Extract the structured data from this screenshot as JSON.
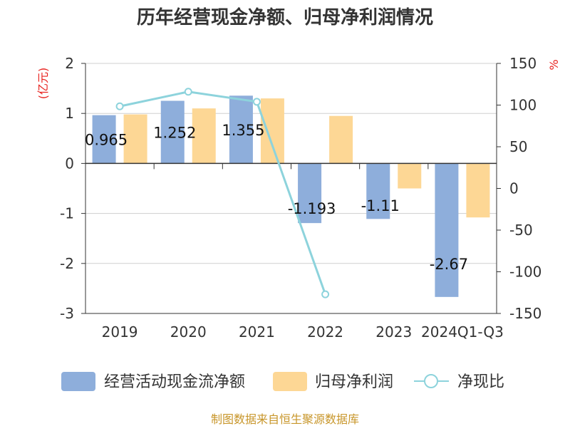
{
  "chart_data": {
    "type": "bar",
    "title": "历年经营现金净额、归母净利润情况",
    "left_axis_unit": "(亿元)",
    "right_axis_unit": "%",
    "categories": [
      "2019",
      "2020",
      "2021",
      "2022",
      "2023",
      "2024Q1-Q3"
    ],
    "left_ylim": [
      -3,
      2
    ],
    "left_ticks": [
      2,
      1,
      0,
      -1,
      -2,
      -3
    ],
    "right_ylim": [
      -150,
      150
    ],
    "right_ticks": [
      150,
      100,
      50,
      0,
      -50,
      -100,
      -150
    ],
    "series": [
      {
        "name": "经营活动现金流净额",
        "kind": "bar",
        "axis": "left",
        "color": "#8eaedb",
        "values": [
          0.965,
          1.252,
          1.355,
          -1.193,
          -1.11,
          -2.67
        ],
        "labels": [
          "0.965",
          "1.252",
          "1.355",
          "-1.193",
          "-1.11",
          "-2.67"
        ]
      },
      {
        "name": "归母净利润",
        "kind": "bar",
        "axis": "left",
        "color": "#fdd795",
        "values": [
          0.98,
          1.1,
          1.3,
          0.95,
          -0.5,
          -1.08
        ]
      },
      {
        "name": "净现比",
        "kind": "line",
        "axis": "right",
        "color": "#8dd3dc",
        "values": [
          98.5,
          116,
          104,
          -127,
          null,
          null
        ]
      }
    ],
    "source": "制图数据来自恒生聚源数据库"
  }
}
